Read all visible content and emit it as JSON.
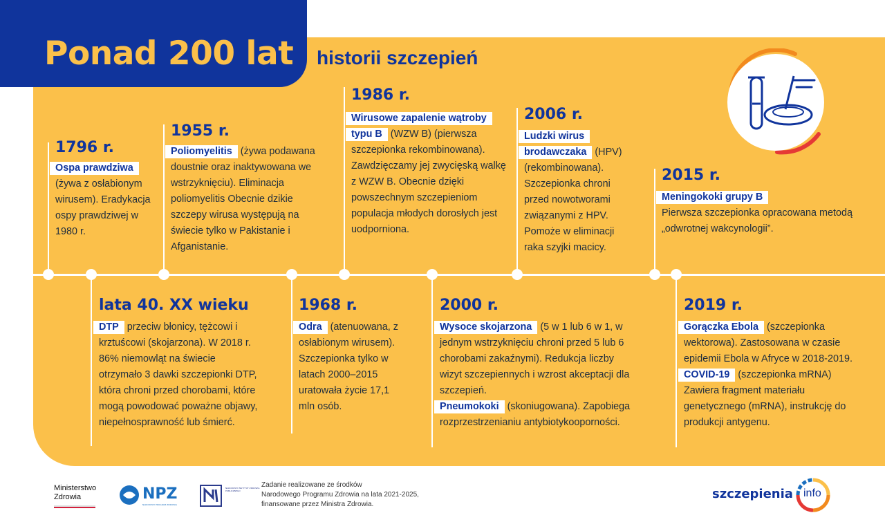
{
  "header": {
    "title": "Ponad 200 lat",
    "subtitle": "historii szczepień"
  },
  "colors": {
    "navy": "#10349c",
    "yellow": "#fbc04a",
    "white": "#ffffff",
    "text": "#1f2d3d",
    "orange": "#f28a1e",
    "red": "#e53935"
  },
  "icons": {
    "badge": "test-tube-petri-dish-icon"
  },
  "events_top": [
    {
      "year": "1796 r.",
      "highlight": "Ospa prawdziwa",
      "text": "(żywa z osłabionym wirusem). Eradykacja ospy prawdziwej w 1980 r."
    },
    {
      "year": "1955 r.",
      "highlight": "Poliomyelitis",
      "text": "(żywa podawana doustnie oraz inaktywowana we wstrzyknięciu). Eliminacja poliomyelitis Obecnie dzikie szczepy wirusa występują na świecie tylko w Pakistanie i Afganistanie."
    },
    {
      "year": "1986 r.",
      "highlight": "Wirusowe zapalenie wątroby typu B",
      "text": "(WZW B) (pierwsza szczepionka rekombinowana). Zawdzięczamy jej zwycięską walkę z WZW B. Obecnie dzięki powszechnym szczepieniom populacja młodych dorosłych jest uodporniona."
    },
    {
      "year": "2006 r.",
      "highlight": "Ludzki wirus brodawczaka",
      "text": "(HPV) (rekombinowana). Szczepionka chroni przed nowotworami związanymi z HPV. Pomoże w eliminacji raka szyjki macicy."
    },
    {
      "year": "2015 r.",
      "highlight": "Meningokoki grupy B",
      "text": "Pierwsza szczepionka opracowana metodą „odwrotnej wakcynologii”."
    }
  ],
  "events_bottom": [
    {
      "year": "lata 40. XX wieku",
      "highlight": "DTP",
      "text": "przeciw błonicy, tężcowi i krztuścowi (skojarzona). W 2018 r. 86% niemowląt na świecie otrzymało 3 dawki szczepionki DTP, która chroni przed chorobami, które mogą powodować poważne objawy, niepełnosprawność lub śmierć."
    },
    {
      "year": "1968 r.",
      "highlight": "Odra",
      "text": "(atenuowana, z osłabionym wirusem). Szczepionka tylko w latach 2000–2015 uratowała życie 17,1 mln osób."
    },
    {
      "year": "2000 r.",
      "highlight": "Wysoce skojarzona",
      "text": "(5 w 1 lub 6 w 1, w jednym wstrzyknięciu chroni przed 5 lub 6 chorobami zakaźnymi). Redukcja liczby wizyt szczepiennych i wzrost akceptacji dla szczepień.",
      "highlight2": "Pneumokoki",
      "text2": "(skoniugowana). Zapobiega rozprzestrzenianiu antybiotykooporności."
    },
    {
      "year": "2019 r.",
      "highlight": "Gorączka Ebola",
      "text": "(szczepionka wektorowa). Zastosowana w czasie epidemii Ebola w Afryce w 2018-2019.",
      "highlight2": "COVID-19",
      "text2": "(szczepionka mRNA) Zawiera fragment materiału genetycznego (mRNA), instrukcję do produkcji antygenu."
    }
  ],
  "footer": {
    "ministry_line1": "Ministerstwo",
    "ministry_line2": "Zdrowia",
    "npz_label": "NPZ",
    "npz_sub": "NARODOWY PROGRAM ZDROWIA",
    "nipz_label": "NARODOWY INSTYTUT ZDROWIA PUBLICZNEGO",
    "funding_line1": "Zadanie realizowane ze środków",
    "funding_line2": "Narodowego Programu Zdrowia na lata 2021-2025,",
    "funding_line3": "finansowane przez Ministra Zdrowia.",
    "brand_main": "szczepienia",
    "brand_suffix": "info"
  }
}
